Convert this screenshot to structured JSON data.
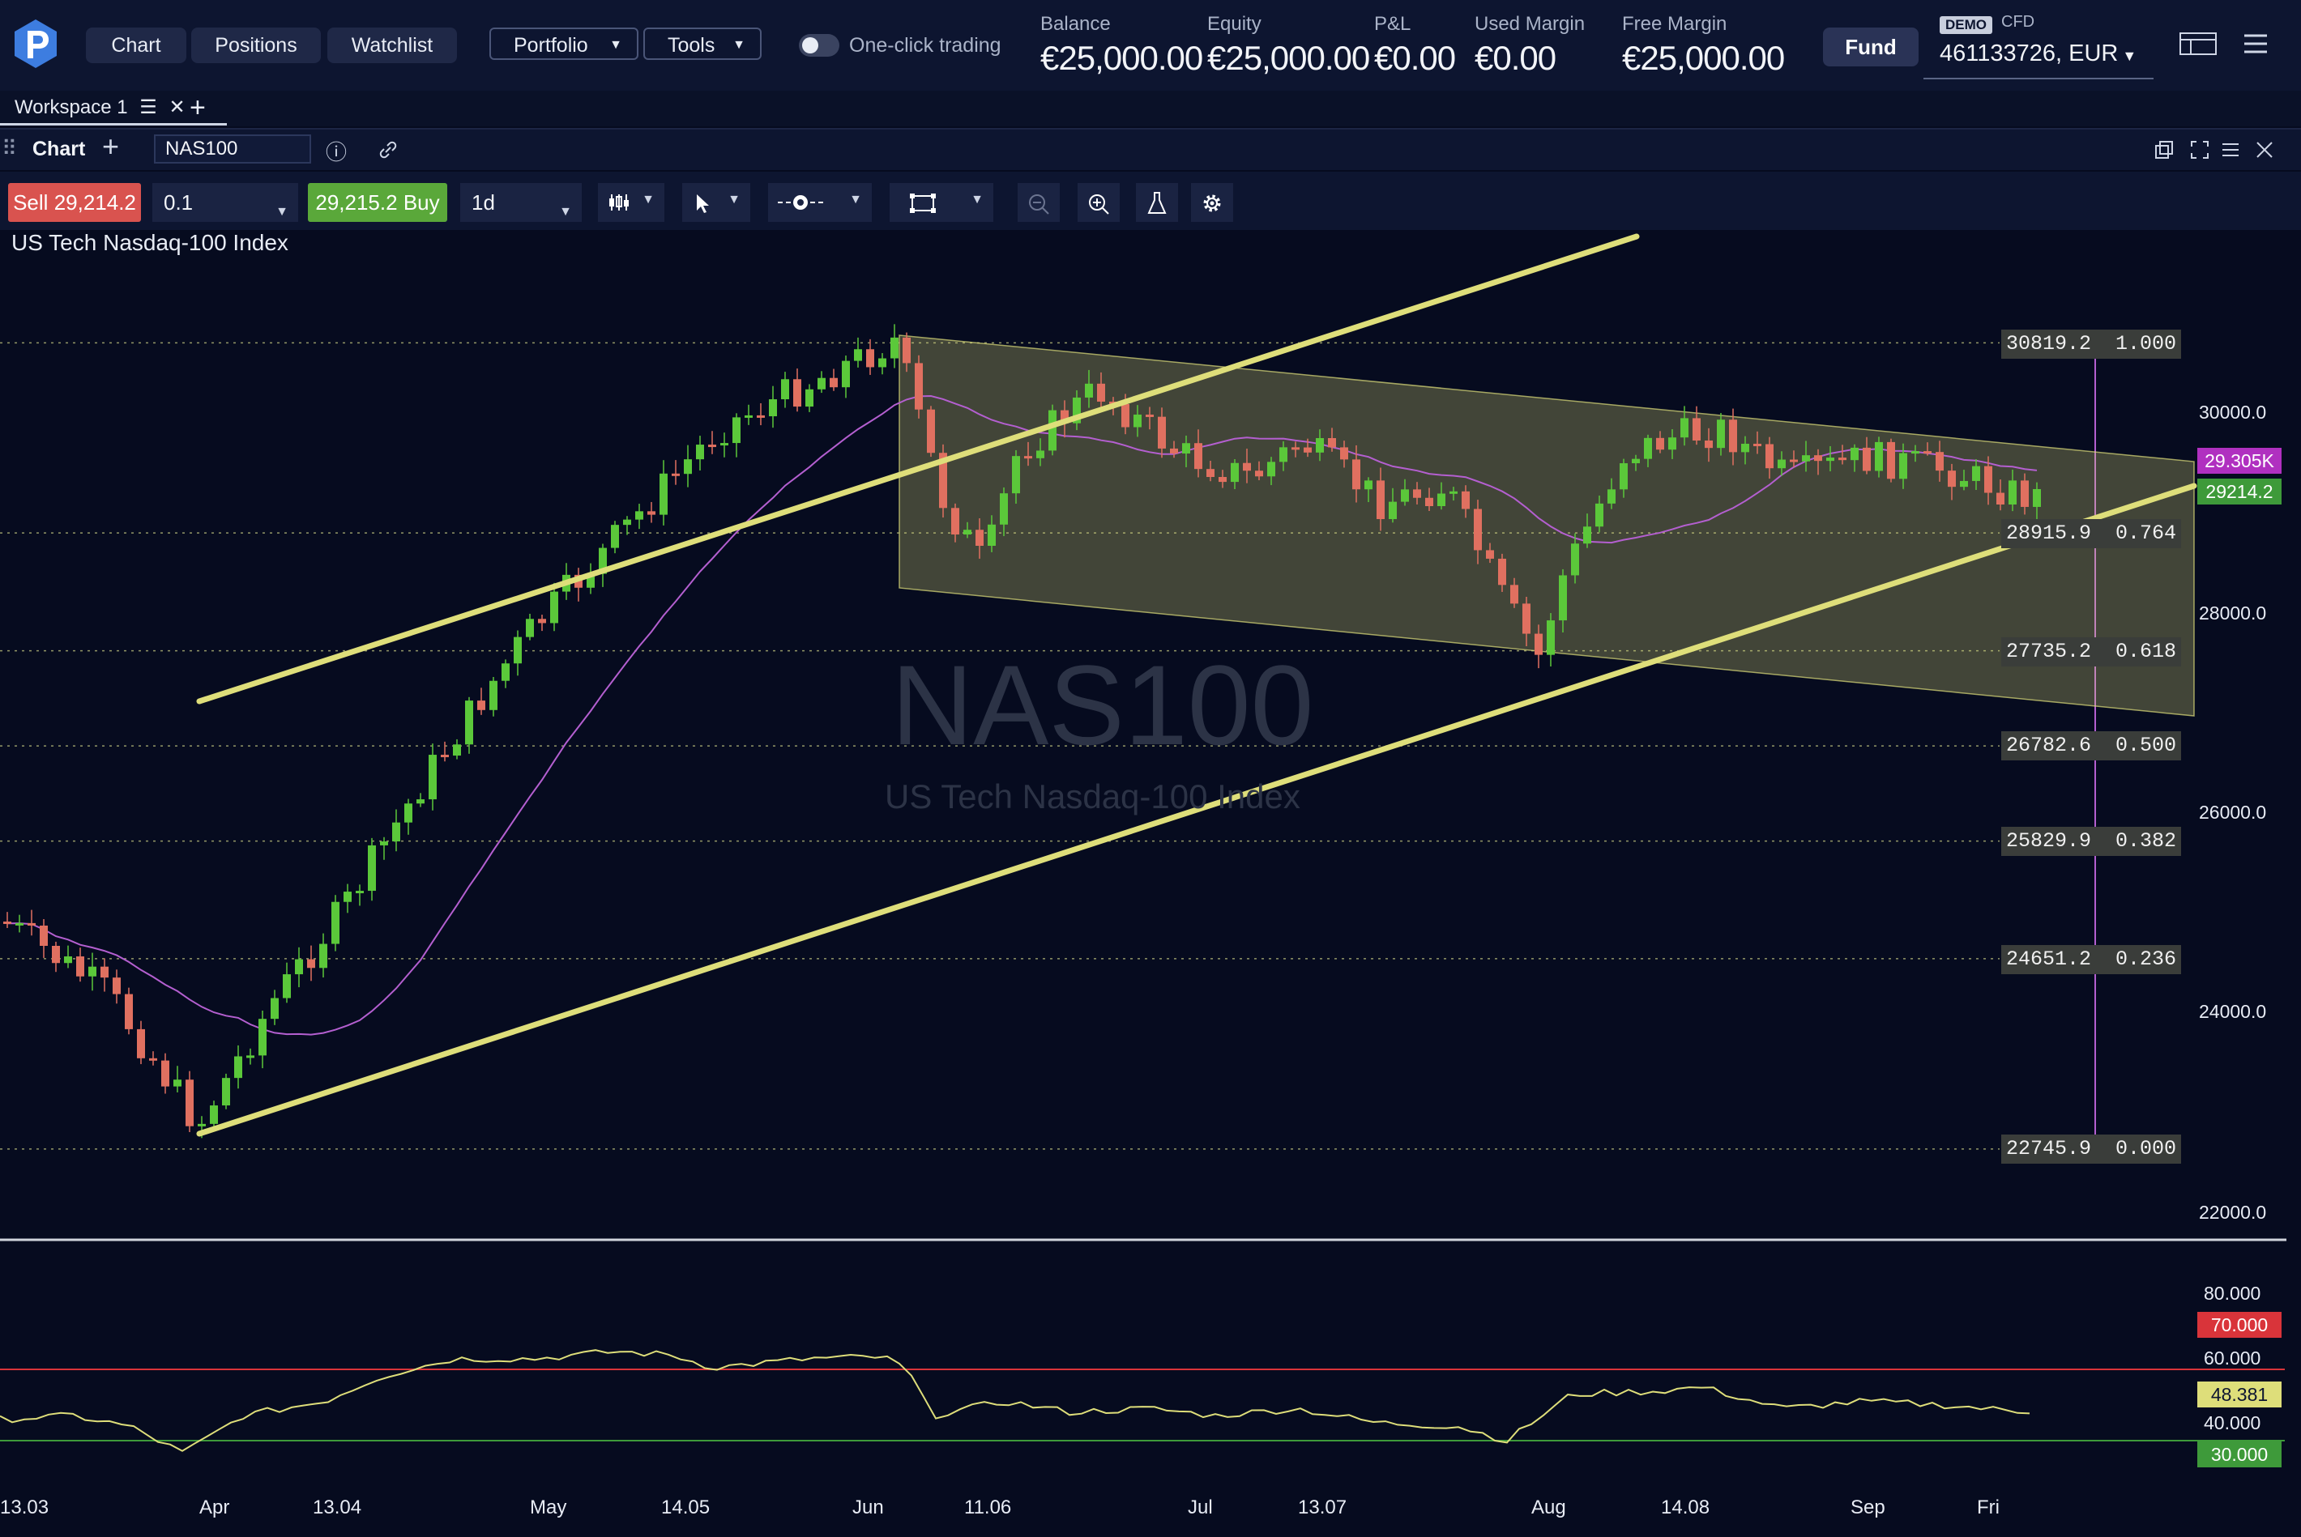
{
  "header": {
    "nav": [
      "Chart",
      "Positions",
      "Watchlist"
    ],
    "menus": [
      "Portfolio",
      "Tools"
    ],
    "one_click_label": "One-click trading",
    "stats": [
      {
        "label": "Balance",
        "value": "€25,000.00"
      },
      {
        "label": "Equity",
        "value": "€25,000.00"
      },
      {
        "label": "P&L",
        "value": "€0.00"
      },
      {
        "label": "Used Margin",
        "value": "€0.00"
      },
      {
        "label": "Free Margin",
        "value": "€25,000.00"
      }
    ],
    "fund_label": "Fund",
    "demo_badge": "DEMO",
    "cfd_label": "CFD",
    "account": "461133726, EUR"
  },
  "workspace": {
    "tab_label": "Workspace 1"
  },
  "chart_panel": {
    "title": "Chart",
    "symbol": "NAS100",
    "sell_label": "Sell",
    "sell_price": "29,214.2",
    "quantity": "0.1",
    "buy_label": "Buy",
    "buy_price": "29,215.2",
    "timeframe": "1d",
    "instrument_name": "US Tech Nasdaq-100 Index",
    "watermark_symbol": "NAS100",
    "watermark_name": "US Tech Nasdaq-100 Index"
  },
  "chart_data": {
    "type": "candlestick",
    "symbol": "NAS100",
    "price_axis_ticks": [
      "30000.0",
      "28000.0",
      "26000.0",
      "24000.0",
      "22000.0"
    ],
    "price_ylim": [
      21000,
      31000
    ],
    "last_price_badge": "29214.2",
    "ma_badge": "29.305K",
    "date_ticks": [
      "13.03",
      "Apr",
      "13.04",
      "May",
      "14.05",
      "Jun",
      "11.06",
      "Jul",
      "13.07",
      "Aug",
      "14.08",
      "Sep",
      "Fri"
    ],
    "fib_levels": [
      {
        "price": 30819.2,
        "label": "30819.2  1.000"
      },
      {
        "price": 28915.9,
        "label": "28915.9  0.764"
      },
      {
        "price": 27735.2,
        "label": "27735.2  0.618"
      },
      {
        "price": 26782.6,
        "label": "26782.6  0.500"
      },
      {
        "price": 25829.9,
        "label": "25829.9  0.382"
      },
      {
        "price": 24651.2,
        "label": "24651.2  0.236"
      },
      {
        "price": 22745.9,
        "label": "22745.9  0.000"
      }
    ],
    "rsi": {
      "ticks": [
        "80.000",
        "60.000",
        "40.000"
      ],
      "overbought": "70.000",
      "oversold": "30.000",
      "current": "48.381",
      "ylim": [
        22,
        88
      ]
    },
    "colors": {
      "up": "#5bc83a",
      "down": "#e07060",
      "channel": "#dede7a",
      "ma": "#b45fd0",
      "rsi": "#dede7a"
    }
  }
}
